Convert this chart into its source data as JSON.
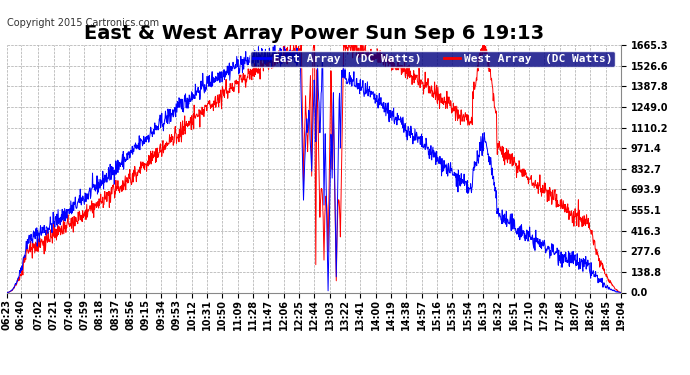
{
  "title": "East & West Array Power Sun Sep 6 19:13",
  "copyright": "Copyright 2015 Cartronics.com",
  "legend_east": "East Array  (DC Watts)",
  "legend_west": "West Array  (DC Watts)",
  "east_color": "#0000ff",
  "west_color": "#ff0000",
  "background_color": "#ffffff",
  "plot_bg_color": "#ffffff",
  "grid_color": "#aaaaaa",
  "yticks": [
    0.0,
    138.8,
    277.6,
    416.3,
    555.1,
    693.9,
    832.7,
    971.4,
    1110.2,
    1249.0,
    1387.8,
    1526.6,
    1665.3
  ],
  "ymax": 1665.3,
  "ymin": 0.0,
  "title_fontsize": 14,
  "tick_fontsize": 7,
  "legend_fontsize": 8,
  "copyright_fontsize": 7
}
